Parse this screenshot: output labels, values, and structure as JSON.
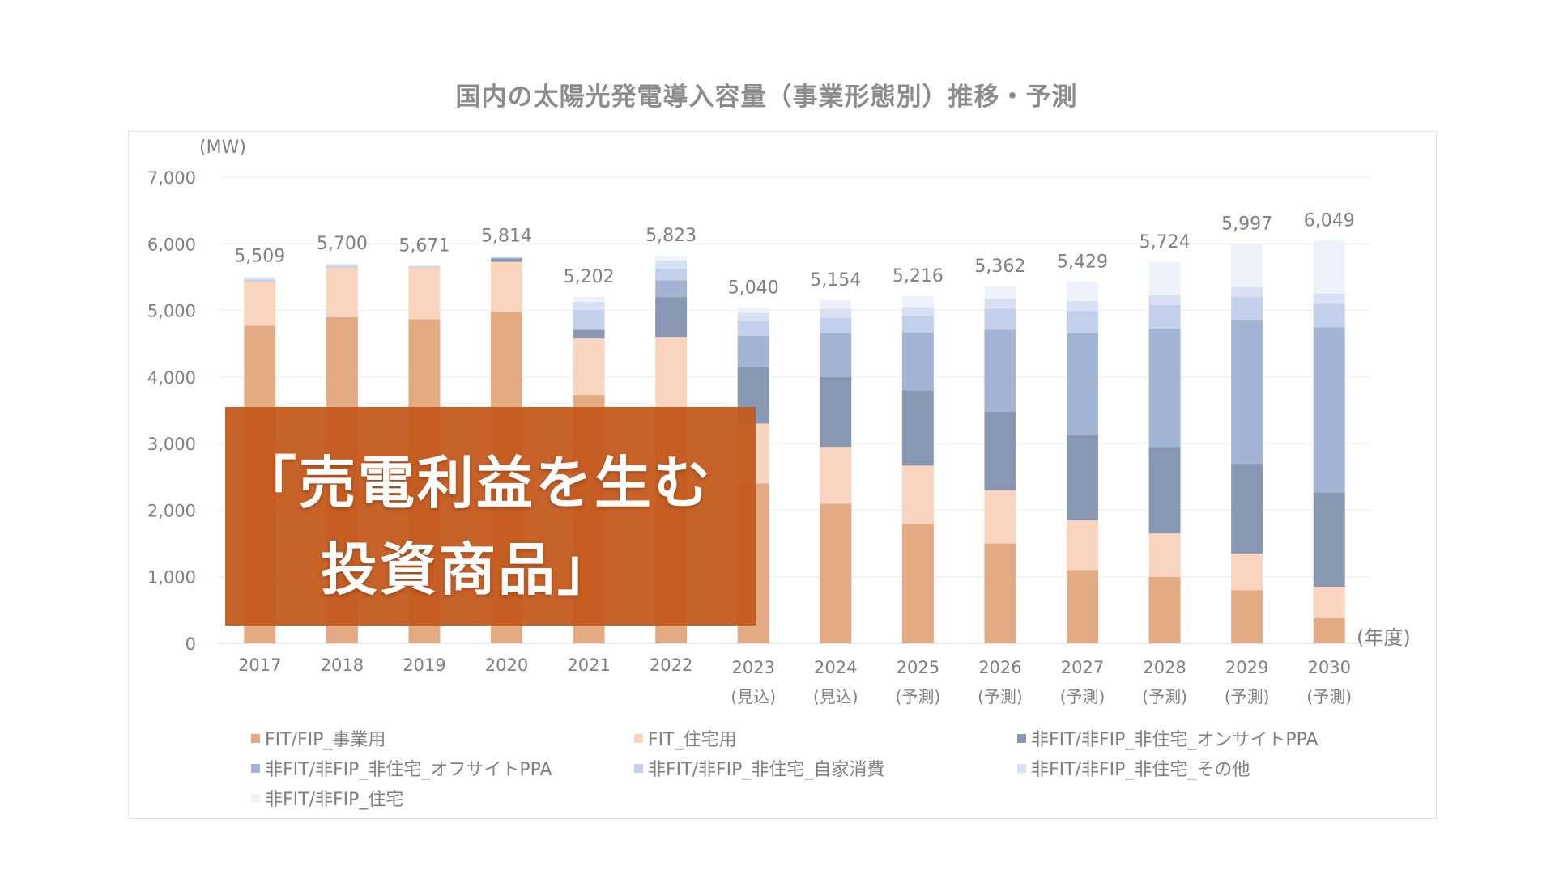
{
  "chart_data": {
    "type": "bar",
    "stacked": true,
    "title": "国内の太陽光発電導入容量（事業形態別）推移・予測",
    "y_unit": "(MW)",
    "x_unit": "(年度)",
    "ylim": [
      0,
      7000
    ],
    "yticks": [
      "0",
      "1,000",
      "2,000",
      "3,000",
      "4,000",
      "5,000",
      "6,000",
      "7,000"
    ],
    "grid": true,
    "legend_position": "bottom",
    "categories": [
      "2017",
      "2018",
      "2019",
      "2020",
      "2021",
      "2022",
      "2023",
      "2024",
      "2025",
      "2026",
      "2027",
      "2028",
      "2029",
      "2030"
    ],
    "category_notes": [
      "",
      "",
      "",
      "",
      "",
      "",
      "(見込)",
      "(見込)",
      "(予測)",
      "(予測)",
      "(予測)",
      "(予測)",
      "(予測)",
      "(予測)"
    ],
    "totals": [
      5509,
      5700,
      5671,
      5814,
      5202,
      5823,
      5040,
      5154,
      5216,
      5362,
      5429,
      5724,
      5997,
      6049
    ],
    "total_labels": [
      "5,509",
      "5,700",
      "5,671",
      "5,814",
      "5,202",
      "5,823",
      "5,040",
      "5,154",
      "5,216",
      "5,362",
      "5,429",
      "5,724",
      "5,997",
      "6,049"
    ],
    "series": [
      {
        "name": "FIT/FIP_事業用",
        "color": "#e2ab84",
        "values": [
          4770,
          4900,
          4870,
          4980,
          3730,
          3550,
          2400,
          2100,
          1800,
          1500,
          1100,
          1000,
          800,
          380
        ]
      },
      {
        "name": "FIT_住宅用",
        "color": "#f9d4be",
        "values": [
          660,
          740,
          770,
          750,
          850,
          1050,
          900,
          850,
          870,
          800,
          750,
          650,
          550,
          470
        ]
      },
      {
        "name": "非FIT/非FIP_非住宅_オンサイトPPA",
        "color": "#8998b2",
        "values": [
          0,
          0,
          0,
          50,
          130,
          600,
          850,
          1050,
          1130,
          1180,
          1280,
          1300,
          1350,
          1420
        ]
      },
      {
        "name": "非FIT/非FIP_非住宅_オフサイトPPA",
        "color": "#a3b4d5",
        "values": [
          0,
          0,
          0,
          0,
          0,
          250,
          470,
          660,
          870,
          1230,
          1530,
          1780,
          2150,
          2480
        ]
      },
      {
        "name": "非FIT/非FIP_非住宅_自家消費",
        "color": "#c2d0ec",
        "values": [
          30,
          30,
          20,
          20,
          300,
          180,
          220,
          230,
          250,
          320,
          330,
          350,
          350,
          350
        ]
      },
      {
        "name": "非FIT/非FIP_非住宅_その他",
        "color": "#d8e1f3",
        "values": [
          30,
          20,
          10,
          10,
          120,
          120,
          120,
          130,
          130,
          150,
          150,
          150,
          150,
          150
        ]
      },
      {
        "name": "非FIT/非FIP_住宅",
        "color": "#eef2fa",
        "values": [
          19,
          10,
          1,
          4,
          72,
          73,
          80,
          134,
          166,
          182,
          289,
          494,
          647,
          799
        ]
      }
    ]
  },
  "overlay": {
    "line1": "「売電利益を生む",
    "line2": "投資商品」",
    "color": "#c4581c"
  }
}
